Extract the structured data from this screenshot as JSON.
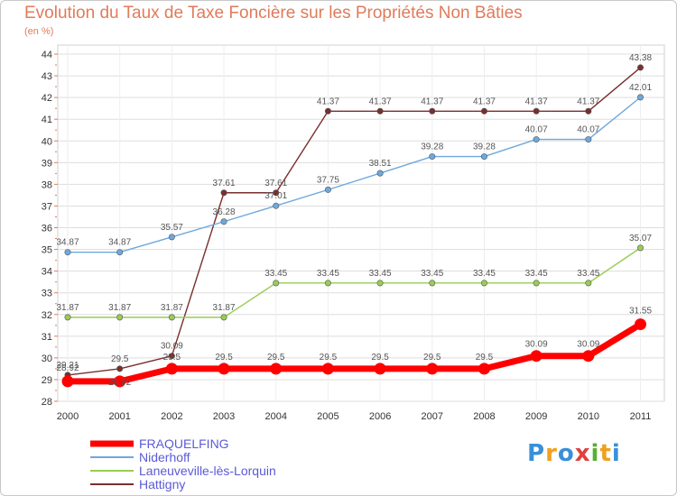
{
  "chart_data": {
    "type": "line",
    "title": "Evolution du Taux de Taxe Foncière sur les Propriétés Non Bâties",
    "ylabel": "(en %)",
    "xlabel": "",
    "categories": [
      "2000",
      "2001",
      "2002",
      "2003",
      "2004",
      "2005",
      "2006",
      "2007",
      "2008",
      "2009",
      "2010",
      "2011"
    ],
    "ylim": [
      28,
      44
    ],
    "yticks": [
      "28",
      "29",
      "30",
      "31",
      "32",
      "33",
      "34",
      "35",
      "36",
      "37",
      "38",
      "39",
      "40",
      "41",
      "42",
      "43",
      "44"
    ],
    "series": [
      {
        "name": "FRAQUELFING",
        "color": "#ff0000",
        "values": [
          28.92,
          28.92,
          29.5,
          29.5,
          29.5,
          29.5,
          29.5,
          29.5,
          29.5,
          30.09,
          30.09,
          31.55
        ],
        "labels": [
          "28.92",
          "28.92",
          "29.5",
          "29.5",
          "29.5",
          "29.5",
          "29.5",
          "29.5",
          "29.5",
          "30.09",
          "30.09",
          "31.55"
        ]
      },
      {
        "name": "Niderhoff",
        "color": "#6fa8dc",
        "values": [
          34.87,
          34.87,
          35.57,
          36.28,
          37.01,
          37.75,
          38.51,
          39.28,
          39.28,
          40.07,
          40.07,
          42.01
        ],
        "labels": [
          "34.87",
          "34.87",
          "35.57",
          "36.28",
          "37.01",
          "37.75",
          "38.51",
          "39.28",
          "39.28",
          "40.07",
          "40.07",
          "42.01"
        ]
      },
      {
        "name": "Laneuveville-lès-Lorquin",
        "color": "#99cc55",
        "values": [
          31.87,
          31.87,
          31.87,
          31.87,
          33.45,
          33.45,
          33.45,
          33.45,
          33.45,
          33.45,
          33.45,
          35.07
        ],
        "labels": [
          "31.87",
          "31.87",
          "31.87",
          "31.87",
          "33.45",
          "33.45",
          "33.45",
          "33.45",
          "33.45",
          "33.45",
          "33.45",
          "35.07"
        ]
      },
      {
        "name": "Hattigny",
        "color": "#7a2e2e",
        "values": [
          29.21,
          29.5,
          30.09,
          37.61,
          37.61,
          41.37,
          41.37,
          41.37,
          41.37,
          41.37,
          41.37,
          43.38
        ],
        "labels": [
          "29.21",
          "29.5",
          "30.09",
          "37.61",
          "37.61",
          "41.37",
          "41.37",
          "41.37",
          "41.37",
          "41.37",
          "41.37",
          "43.38"
        ]
      }
    ]
  },
  "logo": {
    "letters": [
      "P",
      "r",
      "o",
      "x",
      "i",
      "t",
      "i"
    ],
    "colors": [
      "#3a8fd9",
      "#f0a020",
      "#3a8fd9",
      "#e04040",
      "#58b030",
      "#f0a020",
      "#3a8fd9"
    ]
  }
}
